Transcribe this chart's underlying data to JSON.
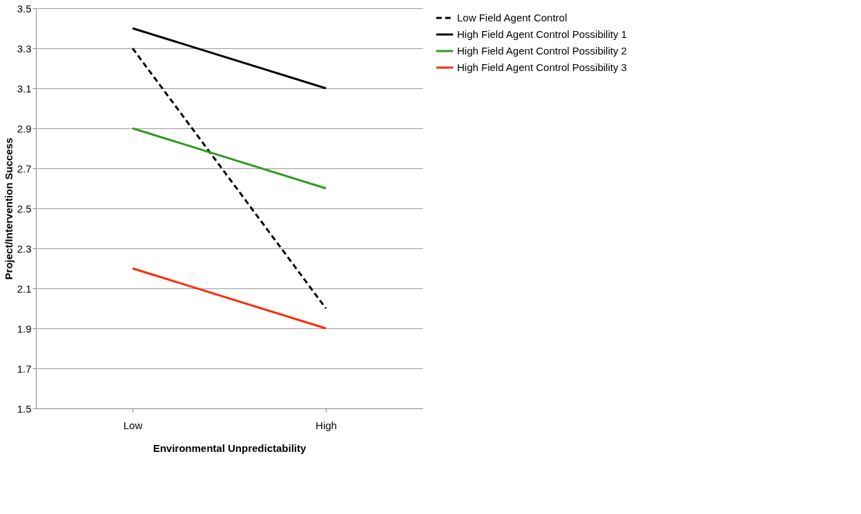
{
  "chart_data": {
    "type": "line",
    "xlabel": "Environmental Unpredictability",
    "ylabel": "Project/Intervention Success",
    "categories": [
      "Low",
      "High"
    ],
    "series": [
      {
        "name": "Low Field Agent Control",
        "color": "#000000",
        "line_style": "dashed",
        "values": [
          3.3,
          2.0
        ]
      },
      {
        "name": "High Field Agent Control Possibility 1",
        "color": "#000000",
        "line_style": "solid",
        "values": [
          3.4,
          3.1
        ]
      },
      {
        "name": "High Field Agent Control Possibility 2",
        "color": "#2e9a1b",
        "line_style": "solid",
        "values": [
          2.9,
          2.6
        ]
      },
      {
        "name": "High Field Agent Control Possibility 3",
        "color": "#ff2a00",
        "line_style": "solid",
        "values": [
          2.2,
          1.9
        ]
      }
    ],
    "ylim": [
      1.5,
      3.5
    ],
    "yticks": [
      1.5,
      1.7,
      1.9,
      2.1,
      2.3,
      2.5,
      2.7,
      2.9,
      3.1,
      3.3,
      3.5
    ],
    "grid": "y",
    "legend": "right",
    "marker": "none"
  }
}
